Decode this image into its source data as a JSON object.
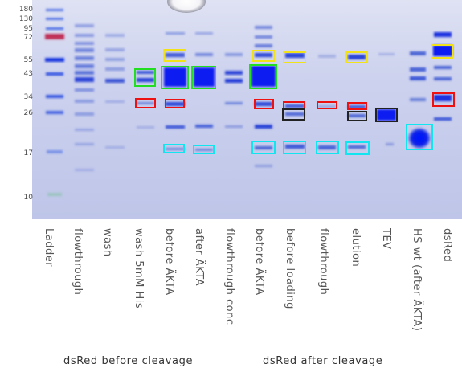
{
  "mw_markers": [
    "180",
    "130",
    "95",
    "72",
    "55",
    "43",
    "34",
    "26",
    "17",
    "10"
  ],
  "lanes": [
    "Ladder",
    "flowthrough",
    "wash",
    "wash 5mM His",
    "before ÄKTA",
    "after ÄKTA",
    "flowthrough conc",
    "before ÄKTA",
    "before loading",
    "flowthrough",
    "elution",
    "TEV",
    "HS wt (after ÄKTA)",
    "dsRed"
  ],
  "groups": {
    "before": "dsRed before cleavage",
    "after": "dsRed after cleavage"
  },
  "box_colors": {
    "green": "#22dd22",
    "yellow": "#f2e21a",
    "red": "#ee1111",
    "cyan": "#11e6f0",
    "black": "#222222"
  },
  "gel_colors": {
    "background": "#c4cae8",
    "band": "#1a2fd8",
    "ladder_red": "#c0305a"
  }
}
